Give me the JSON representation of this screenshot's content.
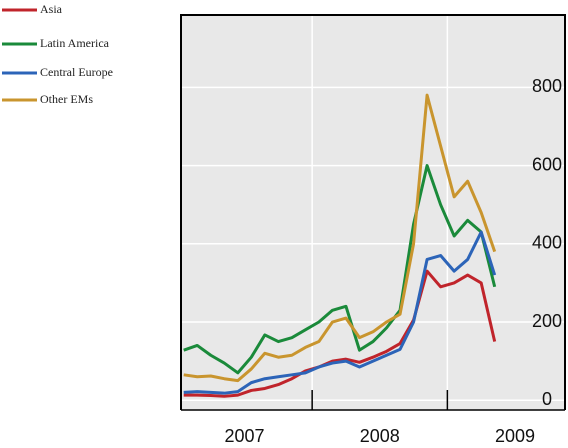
{
  "chart_data": {
    "type": "line",
    "x": [
      2006.55,
      2006.65,
      2006.75,
      2006.85,
      2006.95,
      2007.05,
      2007.15,
      2007.25,
      2007.35,
      2007.45,
      2007.55,
      2007.65,
      2007.75,
      2007.85,
      2007.95,
      2008.05,
      2008.15,
      2008.25,
      2008.35,
      2008.45,
      2008.55,
      2008.65,
      2008.75,
      2008.85
    ],
    "series": [
      {
        "name": "Asia",
        "color": "#c0242b",
        "values": [
          13,
          13,
          12,
          10,
          13,
          25,
          30,
          40,
          55,
          75,
          85,
          100,
          105,
          97,
          110,
          125,
          145,
          205,
          330,
          290,
          300,
          320,
          300,
          150
        ]
      },
      {
        "name": "Latin America",
        "color": "#1a8a3a",
        "values": [
          128,
          140,
          115,
          95,
          70,
          110,
          167,
          150,
          160,
          180,
          200,
          230,
          240,
          128,
          150,
          185,
          230,
          450,
          600,
          500,
          420,
          460,
          430,
          290
        ]
      },
      {
        "name": "Central Europe",
        "color": "#2c64b8",
        "values": [
          20,
          22,
          20,
          18,
          22,
          45,
          55,
          60,
          65,
          70,
          85,
          95,
          100,
          85,
          100,
          115,
          130,
          200,
          360,
          370,
          330,
          360,
          430,
          320
        ]
      },
      {
        "name": "Other EMs",
        "color": "#c9952e",
        "values": [
          65,
          60,
          62,
          55,
          50,
          80,
          120,
          110,
          115,
          135,
          150,
          200,
          210,
          160,
          175,
          200,
          220,
          400,
          780,
          650,
          520,
          560,
          480,
          380
        ]
      }
    ],
    "xlim": [
      2006.53,
      2009.37
    ],
    "xticks": [
      2007,
      2008,
      2009
    ],
    "xgrid": [
      2007.5,
      2008.5
    ],
    "ylim": [
      -25,
      985
    ],
    "yticks": [
      0,
      200,
      400,
      600,
      800
    ],
    "grid": true
  }
}
